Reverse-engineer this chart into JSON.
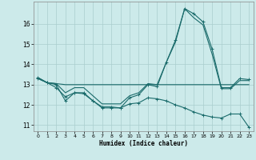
{
  "xlabel": "Humidex (Indice chaleur)",
  "ylabel": "",
  "bg_color": "#cceaea",
  "line_color": "#1a6b6b",
  "grid_color": "#aacece",
  "xlim": [
    -0.5,
    23.5
  ],
  "ylim": [
    10.7,
    17.1
  ],
  "yticks": [
    11,
    12,
    13,
    14,
    15,
    16
  ],
  "xticks": [
    0,
    1,
    2,
    3,
    4,
    5,
    6,
    7,
    8,
    9,
    10,
    11,
    12,
    13,
    14,
    15,
    16,
    17,
    18,
    19,
    20,
    21,
    22,
    23
  ],
  "curve1_x": [
    0,
    1,
    2,
    3,
    4,
    5,
    6,
    7,
    8,
    9,
    10,
    11,
    12,
    13,
    14,
    15,
    16,
    17,
    18,
    19,
    20,
    21,
    22,
    23
  ],
  "curve1_y": [
    13.35,
    13.1,
    13.05,
    13.0,
    13.0,
    13.0,
    13.0,
    13.0,
    13.0,
    13.0,
    13.0,
    13.0,
    13.0,
    13.0,
    13.0,
    13.0,
    13.0,
    13.0,
    13.0,
    13.0,
    13.0,
    13.0,
    13.0,
    13.0
  ],
  "curve2_x": [
    0,
    1,
    2,
    3,
    4,
    5,
    6,
    7,
    8,
    9,
    10,
    11,
    12,
    13,
    14,
    15,
    16,
    17,
    18,
    19,
    20,
    21,
    22,
    23
  ],
  "curve2_y": [
    13.35,
    13.1,
    13.0,
    12.2,
    12.6,
    12.6,
    12.2,
    11.85,
    11.85,
    11.85,
    12.35,
    12.5,
    13.0,
    12.9,
    14.1,
    15.2,
    16.75,
    16.5,
    16.1,
    14.75,
    12.85,
    12.85,
    13.3,
    13.25
  ],
  "curve3_x": [
    0,
    1,
    2,
    3,
    4,
    5,
    6,
    7,
    8,
    9,
    10,
    11,
    12,
    13,
    14,
    15,
    16,
    17,
    18,
    19,
    20,
    21,
    22,
    23
  ],
  "curve3_y": [
    13.3,
    13.1,
    13.05,
    12.6,
    12.85,
    12.85,
    12.45,
    12.05,
    12.05,
    12.05,
    12.45,
    12.6,
    13.05,
    13.0,
    14.1,
    15.1,
    16.75,
    16.3,
    15.95,
    14.5,
    12.8,
    12.8,
    13.2,
    13.2
  ],
  "curve4_x": [
    0,
    1,
    2,
    3,
    4,
    5,
    6,
    7,
    8,
    9,
    10,
    11,
    12,
    13,
    14,
    15,
    16,
    17,
    18,
    19,
    20,
    21,
    22,
    23
  ],
  "curve4_y": [
    13.3,
    13.1,
    12.85,
    12.4,
    12.6,
    12.55,
    12.2,
    11.9,
    11.9,
    11.85,
    12.05,
    12.1,
    12.35,
    12.3,
    12.2,
    12.0,
    11.85,
    11.65,
    11.5,
    11.4,
    11.35,
    11.55,
    11.55,
    10.9
  ]
}
